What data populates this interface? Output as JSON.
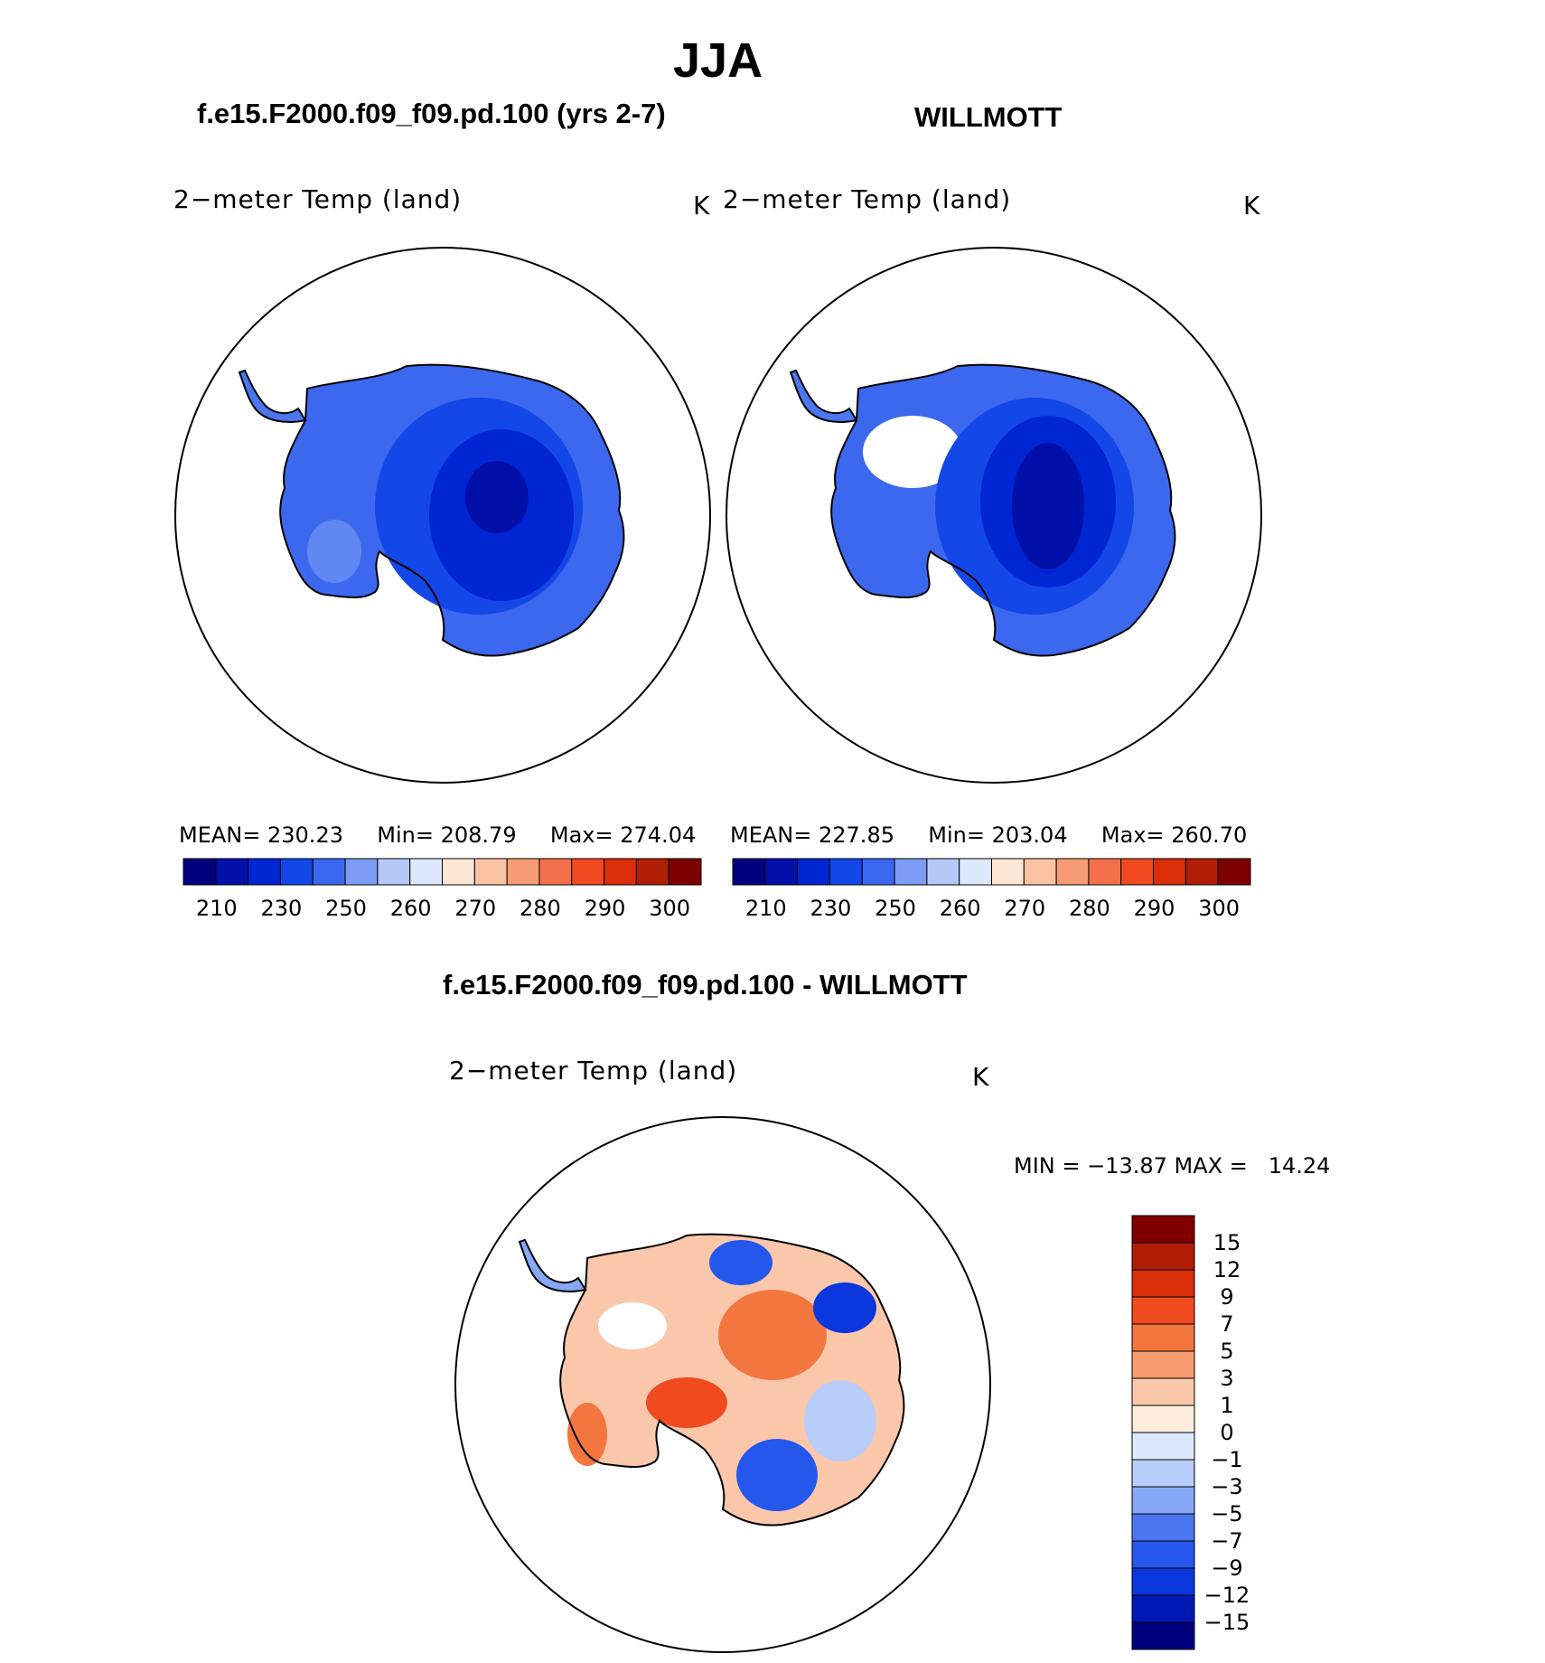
{
  "season": "JJA",
  "panels": {
    "model": {
      "case_title": "f.e15.F2000.f09_f09.pd.100 (yrs 2-7)",
      "var_title": "2−meter Temp (land)",
      "units": "K",
      "mean_label": "MEAN=",
      "mean_value": "230.23",
      "min_label": "Min=",
      "min_value": "208.79",
      "max_label": "Max=",
      "max_value": "274.04"
    },
    "obs": {
      "case_title": "WILLMOTT",
      "var_title": "2−meter Temp (land)",
      "units": "K",
      "mean_label": "MEAN=",
      "mean_value": "227.85",
      "min_label": "Min=",
      "min_value": "203.04",
      "max_label": "Max=",
      "max_value": "260.70"
    },
    "diff": {
      "case_title": "f.e15.F2000.f09_f09.pd.100 - WILLMOTT",
      "var_title": "2−meter Temp (land)",
      "units": "K",
      "minmax_text": "MIN = −13.87 MAX =   14.24"
    }
  },
  "abs_colorbar": {
    "colors": [
      "#00007f",
      "#0010a8",
      "#0025d2",
      "#1447e8",
      "#3b68ef",
      "#7c9cf5",
      "#b4c9f8",
      "#dce8fc",
      "#fde7d6",
      "#fbc3a2",
      "#f79b74",
      "#f3704a",
      "#f14a20",
      "#d92e08",
      "#b01e04",
      "#7c0000"
    ],
    "tick_labels": [
      "210",
      "230",
      "250",
      "260",
      "270",
      "280",
      "290",
      "300"
    ]
  },
  "diff_colorbar": {
    "colors": [
      "#00007f",
      "#0018b4",
      "#0a37dd",
      "#2557ec",
      "#4a77f0",
      "#86a8f6",
      "#b8cdf9",
      "#dbe9fd",
      "#fdebdc",
      "#fbc7aa",
      "#f89b6f",
      "#f3763f",
      "#f04a1f",
      "#d82e0a",
      "#b11c04",
      "#800000"
    ],
    "tick_labels": [
      "15",
      "12",
      "9",
      "7",
      "5",
      "3",
      "1",
      "0",
      "−1",
      "−3",
      "−5",
      "−7",
      "−9",
      "−12",
      "−15"
    ]
  },
  "chart_data": [
    {
      "type": "heatmap",
      "title": "2−meter Temp (land)",
      "units": "K",
      "region": "Antarctica (south polar stereographic)",
      "stats": {
        "mean": 230.23,
        "min": 208.79,
        "max": 274.04
      },
      "levels": [
        210,
        220,
        230,
        240,
        250,
        255,
        260,
        265,
        270,
        275,
        280,
        285,
        290,
        295,
        300
      ]
    },
    {
      "type": "heatmap",
      "title": "2−meter Temp (land)",
      "units": "K",
      "region": "Antarctica (south polar stereographic)",
      "stats": {
        "mean": 227.85,
        "min": 203.04,
        "max": 260.7
      },
      "levels": [
        210,
        220,
        230,
        240,
        250,
        255,
        260,
        265,
        270,
        275,
        280,
        285,
        290,
        295,
        300
      ]
    },
    {
      "type": "heatmap",
      "title": "2−meter Temp (land)",
      "units": "K",
      "region": "Antarctica (south polar stereographic)",
      "stats": {
        "min": -13.87,
        "max": 14.24
      },
      "levels": [
        -15,
        -12,
        -9,
        -7,
        -5,
        -3,
        -1,
        0,
        1,
        3,
        5,
        7,
        9,
        12,
        15
      ]
    }
  ]
}
